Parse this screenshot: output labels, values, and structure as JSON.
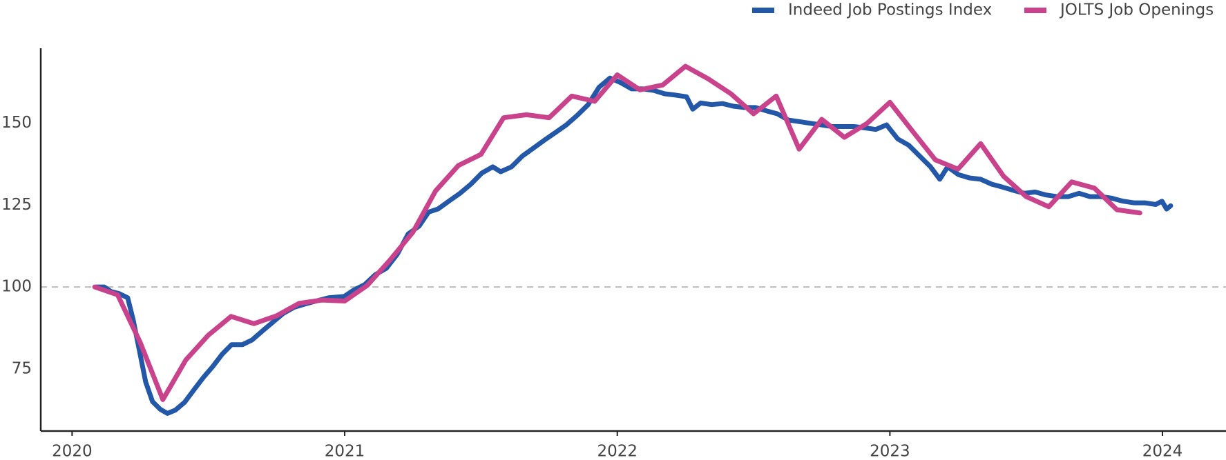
{
  "chart_data": {
    "type": "line",
    "legend": "top-right",
    "xlim": [
      2019.885,
      2024.233
    ],
    "xticks": [
      2020,
      2021,
      2022,
      2023,
      2024
    ],
    "ylim": [
      56,
      172.9
    ],
    "yticks": [
      75,
      100,
      125,
      150
    ],
    "reference_line": 100,
    "grid": false,
    "series": [
      {
        "name": "Indeed Job Postings Index",
        "color": "#2357a8",
        "x": [
          2020.086,
          2020.118,
          2020.143,
          2020.172,
          2020.204,
          2020.224,
          2020.247,
          2020.27,
          2020.295,
          2020.324,
          2020.35,
          2020.379,
          2020.413,
          2020.447,
          2020.482,
          2020.516,
          2020.551,
          2020.585,
          2020.625,
          2020.66,
          2020.7,
          2020.74,
          2020.774,
          2020.815,
          2020.855,
          2020.895,
          2020.941,
          2020.998,
          2021.032,
          2021.073,
          2021.113,
          2021.153,
          2021.193,
          2021.233,
          2021.273,
          2021.308,
          2021.342,
          2021.382,
          2021.423,
          2021.463,
          2021.503,
          2021.543,
          2021.572,
          2021.612,
          2021.652,
          2021.692,
          2021.732,
          2021.772,
          2021.813,
          2021.853,
          2021.893,
          2021.933,
          2021.973,
          2022.013,
          2022.053,
          2022.094,
          2022.134,
          2022.174,
          2022.214,
          2022.254,
          2022.277,
          2022.306,
          2022.346,
          2022.386,
          2022.426,
          2022.466,
          2022.507,
          2022.547,
          2022.587,
          2022.627,
          2022.667,
          2022.707,
          2022.748,
          2022.788,
          2022.828,
          2022.868,
          2022.908,
          2022.948,
          2022.988,
          2023.029,
          2023.069,
          2023.109,
          2023.149,
          2023.183,
          2023.212,
          2023.252,
          2023.292,
          2023.333,
          2023.373,
          2023.413,
          2023.453,
          2023.493,
          2023.533,
          2023.573,
          2023.614,
          2023.654,
          2023.694,
          2023.734,
          2023.774,
          2023.814,
          2023.855,
          2023.895,
          2023.935,
          2023.975,
          2023.998,
          2024.015,
          2024.03
        ],
        "values": [
          100,
          100,
          98.6,
          98,
          96.7,
          90,
          80.5,
          71,
          65,
          62.6,
          61.4,
          62.4,
          64.8,
          68.6,
          72.4,
          75.7,
          79.5,
          82.4,
          82.4,
          83.8,
          86.7,
          89.5,
          91.9,
          93.8,
          94.8,
          95.7,
          96.7,
          97.1,
          99,
          100.7,
          103.8,
          105.7,
          110,
          116.2,
          118.6,
          122.9,
          123.8,
          126.2,
          128.6,
          131.4,
          134.8,
          136.7,
          135.2,
          136.7,
          140,
          142.4,
          144.8,
          147.1,
          149.5,
          152.4,
          155.7,
          161,
          163.8,
          162.4,
          160.5,
          160.5,
          160,
          159,
          158.6,
          158.1,
          154.3,
          156.2,
          155.7,
          156,
          155.2,
          154.8,
          154.8,
          153.8,
          152.9,
          151,
          150.5,
          150,
          149.5,
          149,
          149,
          149,
          148.6,
          148.1,
          149.5,
          145.2,
          143.3,
          140,
          136.7,
          132.9,
          136.7,
          134.3,
          133.3,
          132.9,
          131.4,
          130.5,
          129.5,
          128.6,
          129,
          128.1,
          127.6,
          127.6,
          128.6,
          127.6,
          127.6,
          127.1,
          126.2,
          125.7,
          125.7,
          125.2,
          126.2,
          123.8,
          124.8
        ]
      },
      {
        "name": "JOLTS Job Openings",
        "color": "#c9428c",
        "x": [
          2020.083,
          2020.167,
          2020.25,
          2020.333,
          2020.417,
          2020.5,
          2020.583,
          2020.667,
          2020.75,
          2020.833,
          2020.917,
          2021,
          2021.083,
          2021.167,
          2021.25,
          2021.333,
          2021.417,
          2021.5,
          2021.583,
          2021.667,
          2021.75,
          2021.833,
          2021.917,
          2022,
          2022.083,
          2022.167,
          2022.25,
          2022.333,
          2022.417,
          2022.5,
          2022.583,
          2022.667,
          2022.75,
          2022.833,
          2022.917,
          2023,
          2023.083,
          2023.167,
          2023.25,
          2023.333,
          2023.417,
          2023.5,
          2023.583,
          2023.667,
          2023.75,
          2023.833,
          2023.917
        ],
        "values": [
          100,
          97.6,
          83,
          65.6,
          77.7,
          85.3,
          91,
          88.8,
          91.2,
          95,
          96,
          95.7,
          100.5,
          108.3,
          116.7,
          129.3,
          137.1,
          140.5,
          151.7,
          152.6,
          151.7,
          158.3,
          156.7,
          164.8,
          160.2,
          161.7,
          167.4,
          163.6,
          159,
          152.9,
          158.3,
          142.1,
          151.2,
          145.7,
          150,
          156.4,
          147.6,
          138.8,
          136,
          143.8,
          133.8,
          127.6,
          124.5,
          132.1,
          130.2,
          123.6,
          122.6
        ]
      }
    ]
  }
}
